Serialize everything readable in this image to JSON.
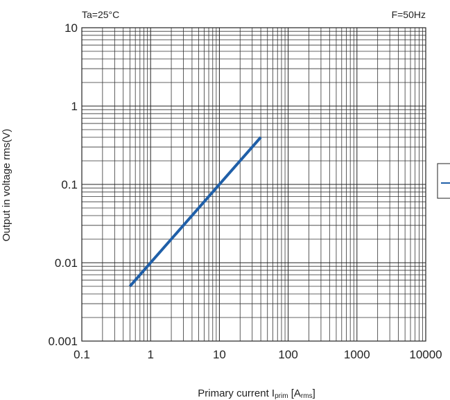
{
  "chart_data": {
    "type": "line",
    "title": "",
    "annotations": {
      "top_left": "Ta=25°C",
      "top_right": "F=50Hz"
    },
    "xlabel": {
      "main": "Primary current I",
      "sub": "prim",
      "bracket_open": " [A",
      "unit_sub": "rms",
      "bracket_close": "]"
    },
    "ylabel": "Output in voltage rms(V)",
    "x_scale": "log",
    "y_scale": "log",
    "xlim": [
      0.1,
      10000
    ],
    "ylim": [
      0.001,
      10
    ],
    "x_tick_labels": [
      "0.1",
      "1",
      "10",
      "100",
      "1000",
      "10000"
    ],
    "y_tick_labels": [
      "0.001",
      "0.01",
      "0.1",
      "1",
      "10"
    ],
    "grid": true,
    "series": [
      {
        "color": "#1f5fa8",
        "points": [
          [
            0.5,
            0.005
          ],
          [
            40,
            0.4
          ]
        ]
      }
    ]
  }
}
